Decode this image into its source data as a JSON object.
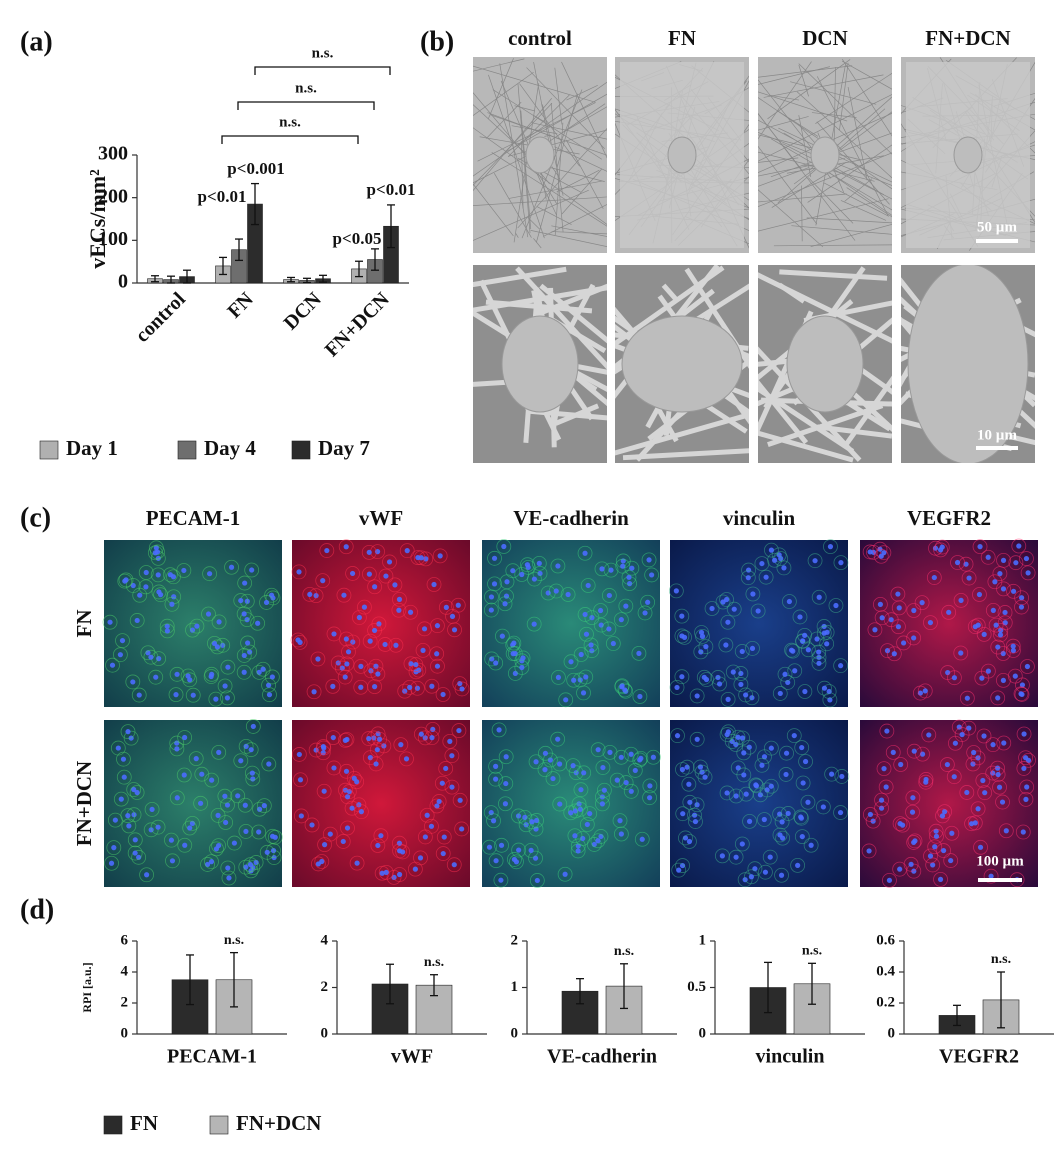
{
  "panel_labels": [
    "(a)",
    "(b)",
    "(c)",
    "(d)"
  ],
  "chart_data": [
    {
      "type": "bar",
      "ylabel": "vECs/mm²",
      "categories": [
        "control",
        "FN",
        "DCN",
        "FN+DCN"
      ],
      "series": [
        {
          "name": "Day 1",
          "color": "#b0b0b0",
          "values": [
            10,
            40,
            8,
            33
          ],
          "errors": [
            7,
            20,
            5,
            18
          ]
        },
        {
          "name": "Day 4",
          "color": "#6e6e6e",
          "values": [
            8,
            78,
            6,
            55
          ],
          "errors": [
            8,
            25,
            5,
            25
          ]
        },
        {
          "name": "Day 7",
          "color": "#2c2c2c",
          "values": [
            15,
            185,
            10,
            133
          ],
          "errors": [
            15,
            48,
            8,
            50
          ]
        }
      ],
      "ylim": [
        0,
        300
      ],
      "yticks": [
        0,
        100,
        200,
        300
      ],
      "annotations": [
        {
          "text": "p<0.01"
        },
        {
          "text": "p<0.001"
        },
        {
          "text": "p<0.05"
        },
        {
          "text": "p<0.01"
        }
      ],
      "brackets": [
        {
          "text": "n.s."
        },
        {
          "text": "n.s."
        },
        {
          "text": "n.s."
        }
      ]
    },
    {
      "type": "bar",
      "ylabel": "RPI [a.u.]",
      "xlabel": "PECAM-1",
      "series": [
        {
          "name": "FN",
          "color": "#2b2b2b",
          "values": [
            3.5
          ],
          "errors": [
            1.6
          ]
        },
        {
          "name": "FN+DCN",
          "color": "#b5b5b5",
          "values": [
            3.5
          ],
          "errors": [
            1.75
          ]
        }
      ],
      "ylim": [
        0,
        6
      ],
      "yticks": [
        0,
        2,
        4,
        6
      ],
      "annotations": [
        {
          "text": "n.s."
        }
      ]
    },
    {
      "type": "bar",
      "xlabel": "vWF",
      "series": [
        {
          "color": "#2b2b2b",
          "values": [
            2.15
          ],
          "errors": [
            0.85
          ]
        },
        {
          "color": "#b5b5b5",
          "values": [
            2.1
          ],
          "errors": [
            0.45
          ]
        }
      ],
      "ylim": [
        0,
        4
      ],
      "yticks": [
        0,
        2,
        4
      ],
      "annotations": [
        {
          "text": "n.s."
        }
      ]
    },
    {
      "type": "bar",
      "xlabel": "VE-cadherin",
      "series": [
        {
          "color": "#2b2b2b",
          "values": [
            0.92
          ],
          "errors": [
            0.27
          ]
        },
        {
          "color": "#b5b5b5",
          "values": [
            1.03
          ],
          "errors": [
            0.48
          ]
        }
      ],
      "ylim": [
        0,
        2
      ],
      "yticks": [
        0,
        1,
        2
      ],
      "annotations": [
        {
          "text": "n.s."
        }
      ]
    },
    {
      "type": "bar",
      "xlabel": "vinculin",
      "series": [
        {
          "color": "#2b2b2b",
          "values": [
            0.5
          ],
          "errors": [
            0.27
          ]
        },
        {
          "color": "#b5b5b5",
          "values": [
            0.54
          ],
          "errors": [
            0.22
          ]
        }
      ],
      "ylim": [
        0,
        1
      ],
      "yticks": [
        0,
        0.5,
        1
      ],
      "annotations": [
        {
          "text": "n.s."
        }
      ]
    },
    {
      "type": "bar",
      "xlabel": "VEGFR2",
      "series": [
        {
          "color": "#2b2b2b",
          "values": [
            0.12
          ],
          "errors": [
            0.065
          ]
        },
        {
          "color": "#b5b5b5",
          "values": [
            0.22
          ],
          "errors": [
            0.18
          ]
        }
      ],
      "ylim": [
        0,
        0.6
      ],
      "yticks": [
        0,
        0.2,
        0.4,
        0.6
      ],
      "annotations": [
        {
          "text": "n.s."
        }
      ]
    }
  ],
  "sem_panel": {
    "columns": [
      "control",
      "FN",
      "DCN",
      "FN+DCN"
    ],
    "scale_bars": [
      "50 µm",
      "10 µm"
    ]
  },
  "fluorescence_panel": {
    "columns": [
      "PECAM-1",
      "vWF",
      "VE-cadherin",
      "vinculin",
      "VEGFR2"
    ],
    "rows": [
      "FN",
      "FN+DCN"
    ],
    "scale_bar": "100 µm"
  }
}
